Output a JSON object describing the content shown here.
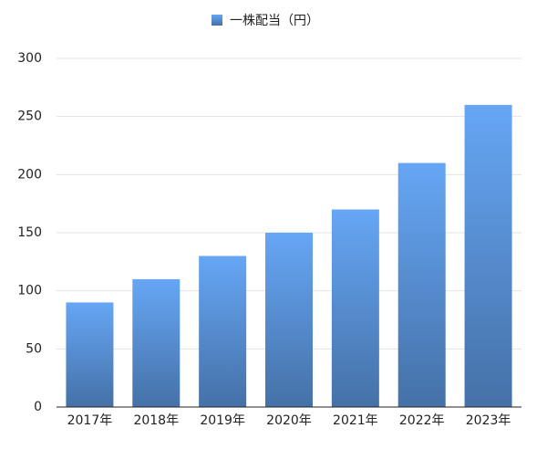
{
  "chart_data": {
    "type": "bar",
    "categories": [
      "2017年",
      "2018年",
      "2019年",
      "2020年",
      "2021年",
      "2022年",
      "2023年"
    ],
    "series": [
      {
        "name": "一株配当（円）",
        "color": "#66a6f5",
        "values": [
          90,
          110,
          130,
          150,
          170,
          210,
          260
        ]
      }
    ],
    "ylim": [
      0,
      300
    ],
    "yticks": [
      0,
      50,
      100,
      150,
      200,
      250,
      300
    ],
    "grid": true,
    "legend": "top"
  }
}
